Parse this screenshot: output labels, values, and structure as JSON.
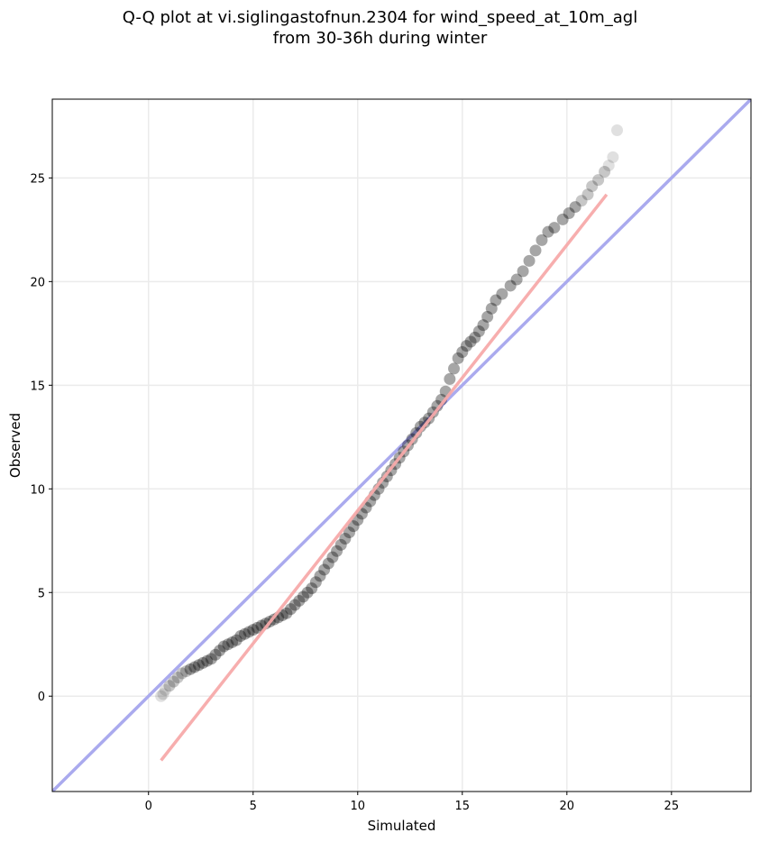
{
  "chart_data": {
    "type": "scatter",
    "title": "Q-Q plot at vi.siglingastofnun.2304 for wind_speed_at_10m_agl",
    "subtitle": "from 30-36h during winter",
    "xlabel": "Simulated",
    "ylabel": "Observed",
    "xlim": [
      -4.6,
      28.8
    ],
    "ylim": [
      -4.6,
      28.8
    ],
    "xticks": [
      0,
      5,
      10,
      15,
      20,
      25
    ],
    "yticks": [
      0,
      5,
      10,
      15,
      20,
      25
    ],
    "grid": true,
    "colors": {
      "points": "#000000",
      "identity_line": "#aaaaee",
      "fit_line": "#f7aaaa",
      "grid": "#ebebeb"
    },
    "identity_line": {
      "x": [
        -4.6,
        28.8
      ],
      "y": [
        -4.6,
        28.8
      ]
    },
    "fit_line": {
      "x": [
        0.6,
        21.9
      ],
      "y": [
        -3.1,
        24.2
      ]
    },
    "points": [
      [
        0.6,
        0.0
      ],
      [
        0.7,
        0.1
      ],
      [
        0.8,
        0.3
      ],
      [
        1.0,
        0.5
      ],
      [
        1.2,
        0.7
      ],
      [
        1.4,
        0.9
      ],
      [
        1.6,
        1.1
      ],
      [
        1.8,
        1.2
      ],
      [
        2.0,
        1.3
      ],
      [
        2.2,
        1.4
      ],
      [
        2.4,
        1.5
      ],
      [
        2.6,
        1.6
      ],
      [
        2.8,
        1.7
      ],
      [
        3.0,
        1.8
      ],
      [
        3.2,
        2.0
      ],
      [
        3.4,
        2.2
      ],
      [
        3.6,
        2.4
      ],
      [
        3.8,
        2.5
      ],
      [
        4.0,
        2.6
      ],
      [
        4.2,
        2.7
      ],
      [
        4.4,
        2.9
      ],
      [
        4.6,
        3.0
      ],
      [
        4.8,
        3.1
      ],
      [
        5.0,
        3.2
      ],
      [
        5.2,
        3.3
      ],
      [
        5.4,
        3.4
      ],
      [
        5.6,
        3.5
      ],
      [
        5.8,
        3.6
      ],
      [
        6.0,
        3.7
      ],
      [
        6.2,
        3.8
      ],
      [
        6.4,
        3.9
      ],
      [
        6.6,
        4.0
      ],
      [
        6.8,
        4.2
      ],
      [
        7.0,
        4.4
      ],
      [
        7.2,
        4.6
      ],
      [
        7.4,
        4.8
      ],
      [
        7.6,
        5.0
      ],
      [
        7.8,
        5.2
      ],
      [
        8.0,
        5.5
      ],
      [
        8.2,
        5.8
      ],
      [
        8.4,
        6.1
      ],
      [
        8.6,
        6.4
      ],
      [
        8.8,
        6.7
      ],
      [
        9.0,
        7.0
      ],
      [
        9.2,
        7.3
      ],
      [
        9.4,
        7.6
      ],
      [
        9.6,
        7.9
      ],
      [
        9.8,
        8.2
      ],
      [
        10.0,
        8.5
      ],
      [
        10.2,
        8.8
      ],
      [
        10.4,
        9.1
      ],
      [
        10.6,
        9.4
      ],
      [
        10.8,
        9.7
      ],
      [
        11.0,
        10.0
      ],
      [
        11.2,
        10.3
      ],
      [
        11.4,
        10.6
      ],
      [
        11.6,
        10.9
      ],
      [
        11.8,
        11.2
      ],
      [
        12.0,
        11.5
      ],
      [
        12.2,
        11.8
      ],
      [
        12.4,
        12.1
      ],
      [
        12.6,
        12.4
      ],
      [
        12.8,
        12.7
      ],
      [
        13.0,
        13.0
      ],
      [
        13.2,
        13.2
      ],
      [
        13.4,
        13.4
      ],
      [
        13.6,
        13.7
      ],
      [
        13.8,
        14.0
      ],
      [
        14.0,
        14.3
      ],
      [
        14.2,
        14.7
      ],
      [
        14.4,
        15.3
      ],
      [
        14.6,
        15.8
      ],
      [
        14.8,
        16.3
      ],
      [
        15.0,
        16.6
      ],
      [
        15.2,
        16.9
      ],
      [
        15.4,
        17.1
      ],
      [
        15.6,
        17.3
      ],
      [
        15.8,
        17.6
      ],
      [
        16.0,
        17.9
      ],
      [
        16.2,
        18.3
      ],
      [
        16.4,
        18.7
      ],
      [
        16.6,
        19.1
      ],
      [
        16.9,
        19.4
      ],
      [
        17.3,
        19.8
      ],
      [
        17.6,
        20.1
      ],
      [
        17.9,
        20.5
      ],
      [
        18.2,
        21.0
      ],
      [
        18.5,
        21.5
      ],
      [
        18.8,
        22.0
      ],
      [
        19.1,
        22.4
      ],
      [
        19.4,
        22.6
      ],
      [
        19.8,
        23.0
      ],
      [
        20.1,
        23.3
      ],
      [
        20.4,
        23.6
      ],
      [
        20.7,
        23.9
      ],
      [
        21.0,
        24.2
      ],
      [
        21.2,
        24.6
      ],
      [
        21.5,
        24.9
      ],
      [
        21.8,
        25.3
      ],
      [
        22.0,
        25.6
      ],
      [
        22.2,
        26.0
      ],
      [
        22.4,
        27.3
      ]
    ]
  }
}
